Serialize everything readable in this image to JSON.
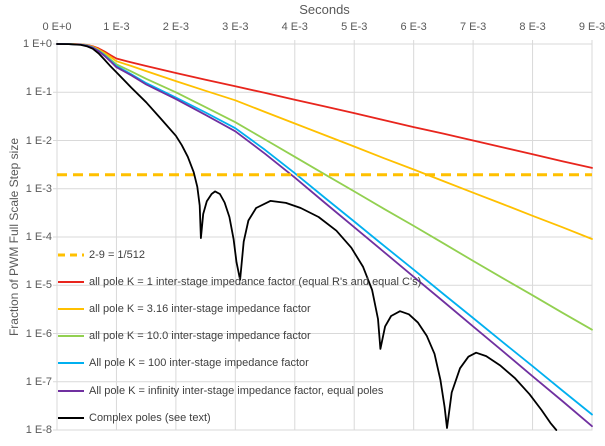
{
  "colors": {
    "background": "#ffffff",
    "grid": "#d9d9d9",
    "axis_text": "#595959",
    "legend_text": "#3f3f3f",
    "threshold": "#ffc000",
    "series_red": "#e8251d",
    "series_gold": "#ffc000",
    "series_green": "#92d050",
    "series_cyan": "#00b0f0",
    "series_purple": "#7030a0",
    "series_black": "#000000"
  },
  "chart_data": {
    "type": "line",
    "title": "",
    "xlabel": "Seconds",
    "ylabel": "Fraction of PWM Full Scale Step size",
    "x_scale": "linear",
    "y_scale": "log",
    "xlim_s": [
      0,
      0.009
    ],
    "ylim": [
      1e-08,
      1.0
    ],
    "grid": true,
    "legend_position": "inside-left",
    "x_ticks": [
      {
        "label": "0 E+0",
        "value_s": 0.0
      },
      {
        "label": "1 E-3",
        "value_s": 0.001
      },
      {
        "label": "2 E-3",
        "value_s": 0.002
      },
      {
        "label": "3 E-3",
        "value_s": 0.003
      },
      {
        "label": "4 E-3",
        "value_s": 0.004
      },
      {
        "label": "5 E-3",
        "value_s": 0.005
      },
      {
        "label": "6 E-3",
        "value_s": 0.006
      },
      {
        "label": "7 E-3",
        "value_s": 0.007
      },
      {
        "label": "8 E-3",
        "value_s": 0.008
      },
      {
        "label": "9 E-3",
        "value_s": 0.009
      }
    ],
    "y_ticks": [
      {
        "label": "1 E+0",
        "value": 1.0
      },
      {
        "label": "1 E-1",
        "value": 0.1
      },
      {
        "label": "1 E-2",
        "value": 0.01
      },
      {
        "label": "1 E-3",
        "value": 0.001
      },
      {
        "label": "1 E-4",
        "value": 0.0001
      },
      {
        "label": "1 E-5",
        "value": 1e-05
      },
      {
        "label": "1 E-6",
        "value": 1e-06
      },
      {
        "label": "1 E-7",
        "value": 1e-07
      },
      {
        "label": "1 E-8",
        "value": 1e-08
      }
    ],
    "threshold_line": {
      "label": "2-9 = 1/512",
      "value": 0.001953125,
      "color": "#ffc000",
      "dashed": true
    },
    "series": [
      {
        "name": "all pole K = 1 inter-stage impedance factor (equal R's and equal C's)",
        "color": "#e8251d",
        "points_t_ms_value": [
          [
            0,
            1
          ],
          [
            0.2,
            0.998
          ],
          [
            0.4,
            0.985
          ],
          [
            0.5,
            0.96
          ],
          [
            0.6,
            0.9
          ],
          [
            0.7,
            0.81
          ],
          [
            0.8,
            0.7
          ],
          [
            0.9,
            0.59
          ],
          [
            1,
            0.5
          ],
          [
            1.25,
            0.415
          ],
          [
            1.5,
            0.35
          ],
          [
            2,
            0.25
          ],
          [
            2.5,
            0.182
          ],
          [
            3,
            0.133
          ],
          [
            3.5,
            0.097
          ],
          [
            4,
            0.07
          ],
          [
            4.5,
            0.051
          ],
          [
            5,
            0.037
          ],
          [
            5.5,
            0.0265
          ],
          [
            6,
            0.019
          ],
          [
            6.5,
            0.0139
          ],
          [
            7,
            0.01
          ],
          [
            7.5,
            0.0072
          ],
          [
            8,
            0.0052
          ],
          [
            8.5,
            0.0037
          ],
          [
            9,
            0.0027
          ]
        ]
      },
      {
        "name": "all pole K = 3.16 inter-stage impedance factor",
        "color": "#ffc000",
        "points_t_ms_value": [
          [
            0,
            1
          ],
          [
            0.2,
            0.998
          ],
          [
            0.4,
            0.98
          ],
          [
            0.5,
            0.95
          ],
          [
            0.6,
            0.88
          ],
          [
            0.7,
            0.77
          ],
          [
            0.8,
            0.65
          ],
          [
            0.9,
            0.54
          ],
          [
            1,
            0.44
          ],
          [
            1.25,
            0.35
          ],
          [
            1.5,
            0.275
          ],
          [
            2,
            0.17
          ],
          [
            2.5,
            0.107
          ],
          [
            3,
            0.068
          ],
          [
            3.5,
            0.039
          ],
          [
            4,
            0.0225
          ],
          [
            4.5,
            0.013
          ],
          [
            5,
            0.0075
          ],
          [
            5.5,
            0.0043
          ],
          [
            6,
            0.0025
          ],
          [
            6.5,
            0.00144
          ],
          [
            7,
            0.00083
          ],
          [
            7.5,
            0.00048
          ],
          [
            8,
            0.000275
          ],
          [
            8.5,
            0.00016
          ],
          [
            9,
            9.1e-05
          ]
        ]
      },
      {
        "name": "all pole K = 10.0 inter-stage impedance factor",
        "color": "#92d050",
        "points_t_ms_value": [
          [
            0,
            1
          ],
          [
            0.2,
            0.997
          ],
          [
            0.4,
            0.975
          ],
          [
            0.5,
            0.94
          ],
          [
            0.6,
            0.86
          ],
          [
            0.7,
            0.74
          ],
          [
            0.8,
            0.61
          ],
          [
            0.9,
            0.48
          ],
          [
            1,
            0.38
          ],
          [
            1.25,
            0.27
          ],
          [
            1.5,
            0.19
          ],
          [
            2,
            0.1
          ],
          [
            2.5,
            0.049
          ],
          [
            3,
            0.024
          ],
          [
            3.5,
            0.0105
          ],
          [
            4,
            0.0046
          ],
          [
            4.5,
            0.002
          ],
          [
            5,
            0.00088
          ],
          [
            5.5,
            0.000385
          ],
          [
            6,
            0.00017
          ],
          [
            6.5,
            7.4e-05
          ],
          [
            7,
            3.2e-05
          ],
          [
            7.5,
            1.4e-05
          ],
          [
            8,
            6.2e-06
          ],
          [
            8.5,
            2.7e-06
          ],
          [
            9,
            1.2e-06
          ]
        ]
      },
      {
        "name": "All pole K = 100 inter-stage impedance factor",
        "color": "#00b0f0",
        "points_t_ms_value": [
          [
            0,
            1
          ],
          [
            0.2,
            0.997
          ],
          [
            0.4,
            0.97
          ],
          [
            0.5,
            0.93
          ],
          [
            0.6,
            0.85
          ],
          [
            0.7,
            0.72
          ],
          [
            0.8,
            0.58
          ],
          [
            0.9,
            0.45
          ],
          [
            1,
            0.35
          ],
          [
            1.25,
            0.235
          ],
          [
            1.5,
            0.155
          ],
          [
            2,
            0.078
          ],
          [
            2.5,
            0.038
          ],
          [
            3,
            0.018
          ],
          [
            3.5,
            0.0064
          ],
          [
            4,
            0.0021
          ],
          [
            4.5,
            0.00066
          ],
          [
            5,
            0.00021
          ],
          [
            5.5,
            6.6e-05
          ],
          [
            6,
            2.1e-05
          ],
          [
            6.5,
            6.6e-06
          ],
          [
            7,
            2.1e-06
          ],
          [
            7.5,
            6.6e-07
          ],
          [
            8,
            2.1e-07
          ],
          [
            8.5,
            6.6e-08
          ],
          [
            9,
            2.1e-08
          ]
        ]
      },
      {
        "name": "All pole K = infinity inter-stage impedance factor, equal poles",
        "color": "#7030a0",
        "points_t_ms_value": [
          [
            0,
            1
          ],
          [
            0.2,
            0.997
          ],
          [
            0.4,
            0.97
          ],
          [
            0.5,
            0.92
          ],
          [
            0.6,
            0.84
          ],
          [
            0.7,
            0.71
          ],
          [
            0.8,
            0.565
          ],
          [
            0.9,
            0.435
          ],
          [
            1,
            0.33
          ],
          [
            1.25,
            0.225
          ],
          [
            1.5,
            0.145
          ],
          [
            2,
            0.072
          ],
          [
            2.5,
            0.034
          ],
          [
            3,
            0.0155
          ],
          [
            3.5,
            0.0053
          ],
          [
            4,
            0.0017
          ],
          [
            4.5,
            0.00052
          ],
          [
            5,
            0.00016
          ],
          [
            5.5,
            4.9e-05
          ],
          [
            6,
            1.5e-05
          ],
          [
            6.5,
            4.6e-06
          ],
          [
            7,
            1.4e-06
          ],
          [
            7.5,
            4.3e-07
          ],
          [
            8,
            1.3e-07
          ],
          [
            8.5,
            4e-08
          ],
          [
            9,
            1.2e-08
          ]
        ]
      },
      {
        "name": "Complex poles (see text)",
        "color": "#000000",
        "points_t_ms_value": [
          [
            0,
            1
          ],
          [
            0.2,
            0.996
          ],
          [
            0.4,
            0.96
          ],
          [
            0.5,
            0.9
          ],
          [
            0.6,
            0.8
          ],
          [
            0.7,
            0.64
          ],
          [
            0.8,
            0.47
          ],
          [
            0.9,
            0.345
          ],
          [
            1,
            0.26
          ],
          [
            1.25,
            0.125
          ],
          [
            1.5,
            0.062
          ],
          [
            1.75,
            0.028
          ],
          [
            2,
            0.0125
          ],
          [
            2.1,
            0.008
          ],
          [
            2.2,
            0.0046
          ],
          [
            2.3,
            0.0022
          ],
          [
            2.36,
            0.0011
          ],
          [
            2.4,
            0.00045
          ],
          [
            2.42,
            9.5e-05
          ],
          [
            2.46,
            0.0003
          ],
          [
            2.52,
            0.00055
          ],
          [
            2.6,
            0.00078
          ],
          [
            2.66,
            0.00088
          ],
          [
            2.74,
            0.00078
          ],
          [
            2.82,
            0.00052
          ],
          [
            2.9,
            0.00026
          ],
          [
            2.97,
            9e-05
          ],
          [
            3.02,
            3e-05
          ],
          [
            3.08,
            1.3e-05
          ],
          [
            3.14,
            8e-05
          ],
          [
            3.22,
            0.00022
          ],
          [
            3.35,
            0.0004
          ],
          [
            3.59,
            0.00056
          ],
          [
            3.85,
            0.00051
          ],
          [
            4.1,
            0.0004
          ],
          [
            4.4,
            0.00026
          ],
          [
            4.7,
            0.000135
          ],
          [
            4.95,
            6e-05
          ],
          [
            5.15,
            2.4e-05
          ],
          [
            5.3,
            8e-06
          ],
          [
            5.4,
            2e-06
          ],
          [
            5.44,
            4.8e-07
          ],
          [
            5.52,
            1.4e-06
          ],
          [
            5.62,
            2.3e-06
          ],
          [
            5.77,
            2.9e-06
          ],
          [
            5.92,
            2.5e-06
          ],
          [
            6.07,
            1.7e-06
          ],
          [
            6.22,
            9e-07
          ],
          [
            6.35,
            3.8e-07
          ],
          [
            6.45,
            1.1e-07
          ],
          [
            6.52,
            3e-08
          ],
          [
            6.56,
            1.1e-08
          ],
          [
            6.64,
            6e-08
          ],
          [
            6.78,
            1.9e-07
          ],
          [
            6.92,
            3.3e-07
          ],
          [
            7.05,
            4e-07
          ],
          [
            7.22,
            3.4e-07
          ],
          [
            7.45,
            2.2e-07
          ],
          [
            7.7,
            1.2e-07
          ],
          [
            7.95,
            5.5e-08
          ],
          [
            8.15,
            2.6e-08
          ],
          [
            8.3,
            1.4e-08
          ],
          [
            8.4,
            1e-08
          ]
        ]
      }
    ]
  }
}
